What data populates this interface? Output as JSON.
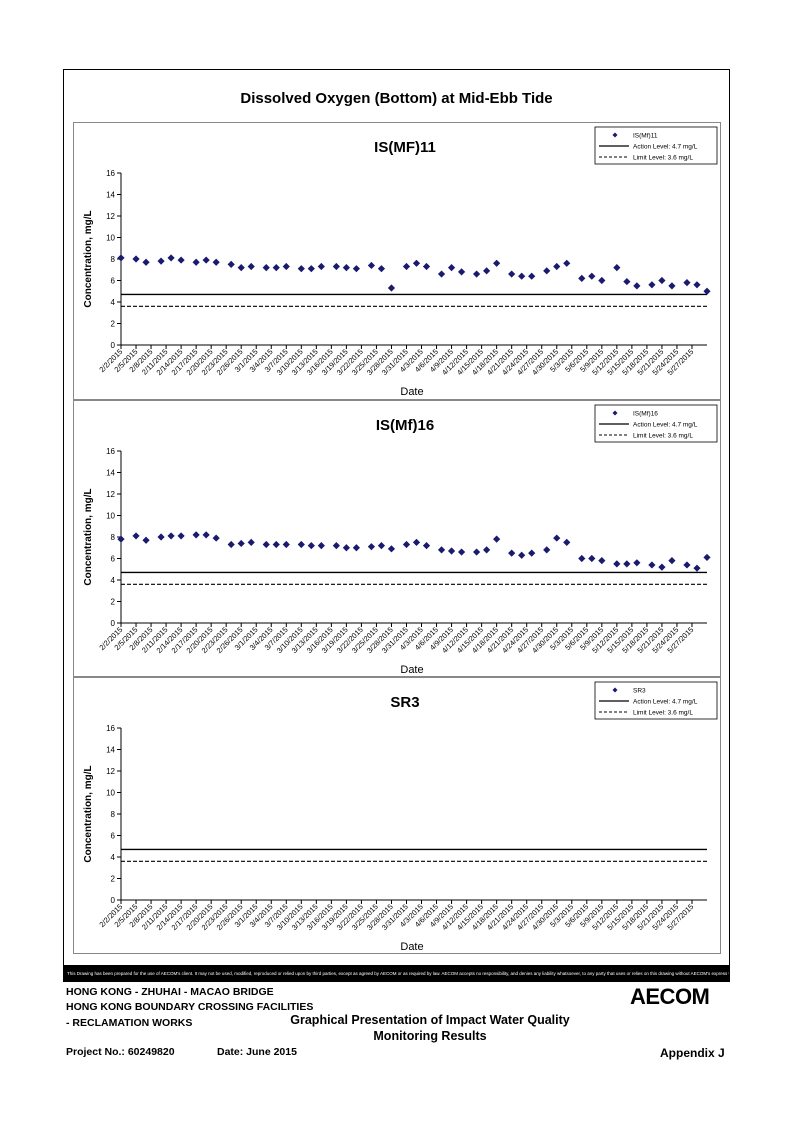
{
  "main_title": "Dissolved Oxygen (Bottom) at Mid-Ebb Tide",
  "disclaimer": "This Drawing has been prepared for the use of AECOM's client. It may not be used, modified, reproduced or relied upon by third parties, except as agreed by AECOM or as required by law. AECOM accepts no responsibility, and denies any liability whatsoever, to any party that uses or relies on this drawing without AECOM's express written consent.",
  "footer": {
    "line1": "HONG KONG - ZHUHAI - MACAO BRIDGE",
    "line2": "HONG KONG BOUNDARY CROSSING FACILITIES",
    "line3": "- RECLAMATION WORKS",
    "heading1": "Graphical Presentation of Impact Water Quality",
    "heading2": "Monitoring Results",
    "project": "Project No.: 60249820",
    "date": "Date: June 2015",
    "appendix": "Appendix J",
    "logo": "AECOM"
  },
  "colors": {
    "marker": "#1a1a6e",
    "line": "#000000"
  },
  "chart_data": [
    {
      "type": "scatter",
      "title": "IS(MF)11",
      "xlabel": "Date",
      "ylabel": "Concentration, mg/L",
      "ylim": [
        0,
        16
      ],
      "yticks": [
        0,
        2,
        4,
        6,
        8,
        10,
        12,
        14,
        16
      ],
      "xlim": [
        "2015-02-02",
        "2015-05-30"
      ],
      "xtick_labels": [
        "2/2/2015",
        "2/5/2015",
        "2/8/2015",
        "2/11/2015",
        "2/14/2015",
        "2/17/2015",
        "2/20/2015",
        "2/23/2015",
        "2/26/2015",
        "3/1/2015",
        "3/4/2015",
        "3/7/2015",
        "3/10/2015",
        "3/13/2015",
        "3/16/2015",
        "3/19/2015",
        "3/22/2015",
        "3/25/2015",
        "3/28/2015",
        "3/31/2015",
        "4/3/2015",
        "4/6/2015",
        "4/9/2015",
        "4/12/2015",
        "4/15/2015",
        "4/18/2015",
        "4/21/2015",
        "4/24/2015",
        "4/27/2015",
        "4/30/2015",
        "5/3/2015",
        "5/6/2015",
        "5/9/2015",
        "5/12/2015",
        "5/15/2015",
        "5/18/2015",
        "5/21/2015",
        "5/24/2015",
        "5/27/2015"
      ],
      "legend": [
        "IS(Mf)11",
        "Action Level: 4.7 mg/L",
        "Limit Level: 3.6 mg/L"
      ],
      "legend_position": "top-right",
      "action_level": 4.7,
      "limit_level": 3.6,
      "series": [
        {
          "name": "IS(Mf)11",
          "x": [
            "2015-02-02",
            "2015-02-05",
            "2015-02-07",
            "2015-02-10",
            "2015-02-12",
            "2015-02-14",
            "2015-02-17",
            "2015-02-19",
            "2015-02-21",
            "2015-02-24",
            "2015-02-26",
            "2015-02-28",
            "2015-03-03",
            "2015-03-05",
            "2015-03-07",
            "2015-03-10",
            "2015-03-12",
            "2015-03-14",
            "2015-03-17",
            "2015-03-19",
            "2015-03-21",
            "2015-03-24",
            "2015-03-26",
            "2015-03-28",
            "2015-03-31",
            "2015-04-02",
            "2015-04-04",
            "2015-04-07",
            "2015-04-09",
            "2015-04-11",
            "2015-04-14",
            "2015-04-16",
            "2015-04-18",
            "2015-04-21",
            "2015-04-23",
            "2015-04-25",
            "2015-04-28",
            "2015-04-30",
            "2015-05-02",
            "2015-05-05",
            "2015-05-07",
            "2015-05-09",
            "2015-05-12",
            "2015-05-14",
            "2015-05-16",
            "2015-05-19",
            "2015-05-21",
            "2015-05-23",
            "2015-05-26",
            "2015-05-28",
            "2015-05-30"
          ],
          "y": [
            8.1,
            8.0,
            7.7,
            7.8,
            8.1,
            7.9,
            7.7,
            7.9,
            7.7,
            7.5,
            7.2,
            7.3,
            7.2,
            7.2,
            7.3,
            7.1,
            7.1,
            7.3,
            7.3,
            7.2,
            7.1,
            7.4,
            7.1,
            5.3,
            7.3,
            7.6,
            7.3,
            6.6,
            7.2,
            6.8,
            6.6,
            6.9,
            7.6,
            6.6,
            6.4,
            6.4,
            6.9,
            7.3,
            7.6,
            6.2,
            6.4,
            6.0,
            7.2,
            5.9,
            5.5,
            5.6,
            6.0,
            5.5,
            5.8,
            5.6,
            5.0
          ]
        }
      ]
    },
    {
      "type": "scatter",
      "title": "IS(Mf)16",
      "xlabel": "Date",
      "ylabel": "Concentration, mg/L",
      "ylim": [
        0,
        16
      ],
      "yticks": [
        0,
        2,
        4,
        6,
        8,
        10,
        12,
        14,
        16
      ],
      "xlim": [
        "2015-02-02",
        "2015-05-30"
      ],
      "xtick_labels": [
        "2/2/2015",
        "2/5/2015",
        "2/8/2015",
        "2/11/2015",
        "2/14/2015",
        "2/17/2015",
        "2/20/2015",
        "2/23/2015",
        "2/26/2015",
        "3/1/2015",
        "3/4/2015",
        "3/7/2015",
        "3/10/2015",
        "3/13/2015",
        "3/16/2015",
        "3/19/2015",
        "3/22/2015",
        "3/25/2015",
        "3/28/2015",
        "3/31/2015",
        "4/3/2015",
        "4/6/2015",
        "4/9/2015",
        "4/12/2015",
        "4/15/2015",
        "4/18/2015",
        "4/21/2015",
        "4/24/2015",
        "4/27/2015",
        "4/30/2015",
        "5/3/2015",
        "5/6/2015",
        "5/9/2015",
        "5/12/2015",
        "5/15/2015",
        "5/18/2015",
        "5/21/2015",
        "5/24/2015",
        "5/27/2015"
      ],
      "legend": [
        "IS(Mf)16",
        "Action Level: 4.7 mg/L",
        "Limit Level: 3.6 mg/L"
      ],
      "legend_position": "top-right",
      "action_level": 4.7,
      "limit_level": 3.6,
      "series": [
        {
          "name": "IS(Mf)16",
          "x": [
            "2015-02-02",
            "2015-02-05",
            "2015-02-07",
            "2015-02-10",
            "2015-02-12",
            "2015-02-14",
            "2015-02-17",
            "2015-02-19",
            "2015-02-21",
            "2015-02-24",
            "2015-02-26",
            "2015-02-28",
            "2015-03-03",
            "2015-03-05",
            "2015-03-07",
            "2015-03-10",
            "2015-03-12",
            "2015-03-14",
            "2015-03-17",
            "2015-03-19",
            "2015-03-21",
            "2015-03-24",
            "2015-03-26",
            "2015-03-28",
            "2015-03-31",
            "2015-04-02",
            "2015-04-04",
            "2015-04-07",
            "2015-04-09",
            "2015-04-11",
            "2015-04-14",
            "2015-04-16",
            "2015-04-18",
            "2015-04-21",
            "2015-04-23",
            "2015-04-25",
            "2015-04-28",
            "2015-04-30",
            "2015-05-02",
            "2015-05-05",
            "2015-05-07",
            "2015-05-09",
            "2015-05-12",
            "2015-05-14",
            "2015-05-16",
            "2015-05-19",
            "2015-05-21",
            "2015-05-23",
            "2015-05-26",
            "2015-05-28",
            "2015-05-30"
          ],
          "y": [
            7.8,
            8.1,
            7.7,
            8.0,
            8.1,
            8.1,
            8.2,
            8.2,
            7.9,
            7.3,
            7.4,
            7.5,
            7.3,
            7.3,
            7.3,
            7.3,
            7.2,
            7.2,
            7.2,
            7.0,
            7.0,
            7.1,
            7.2,
            6.9,
            7.3,
            7.5,
            7.2,
            6.8,
            6.7,
            6.6,
            6.6,
            6.8,
            7.8,
            6.5,
            6.3,
            6.5,
            6.8,
            7.9,
            7.5,
            6.0,
            6.0,
            5.8,
            5.5,
            5.5,
            5.6,
            5.4,
            5.2,
            5.8,
            5.4,
            5.1,
            6.1
          ]
        }
      ]
    },
    {
      "type": "scatter",
      "title": "SR3",
      "xlabel": "Date",
      "ylabel": "Concentration, mg/L",
      "ylim": [
        0,
        16
      ],
      "yticks": [
        0,
        2,
        4,
        6,
        8,
        10,
        12,
        14,
        16
      ],
      "xlim": [
        "2015-02-02",
        "2015-05-30"
      ],
      "xtick_labels": [
        "2/2/2015",
        "2/5/2015",
        "2/8/2015",
        "2/11/2015",
        "2/14/2015",
        "2/17/2015",
        "2/20/2015",
        "2/23/2015",
        "2/26/2015",
        "3/1/2015",
        "3/4/2015",
        "3/7/2015",
        "3/10/2015",
        "3/13/2015",
        "3/16/2015",
        "3/19/2015",
        "3/22/2015",
        "3/25/2015",
        "3/28/2015",
        "3/31/2015",
        "4/3/2015",
        "4/6/2015",
        "4/9/2015",
        "4/12/2015",
        "4/15/2015",
        "4/18/2015",
        "4/21/2015",
        "4/24/2015",
        "4/27/2015",
        "4/30/2015",
        "5/3/2015",
        "5/6/2015",
        "5/9/2015",
        "5/12/2015",
        "5/15/2015",
        "5/18/2015",
        "5/21/2015",
        "5/24/2015",
        "5/27/2015"
      ],
      "legend": [
        "SR3",
        "Action Level: 4.7 mg/L",
        "Limit Level: 3.6 mg/L"
      ],
      "legend_position": "top-right",
      "action_level": 4.7,
      "limit_level": 3.6,
      "series": [
        {
          "name": "SR3",
          "x": [],
          "y": []
        }
      ]
    }
  ]
}
